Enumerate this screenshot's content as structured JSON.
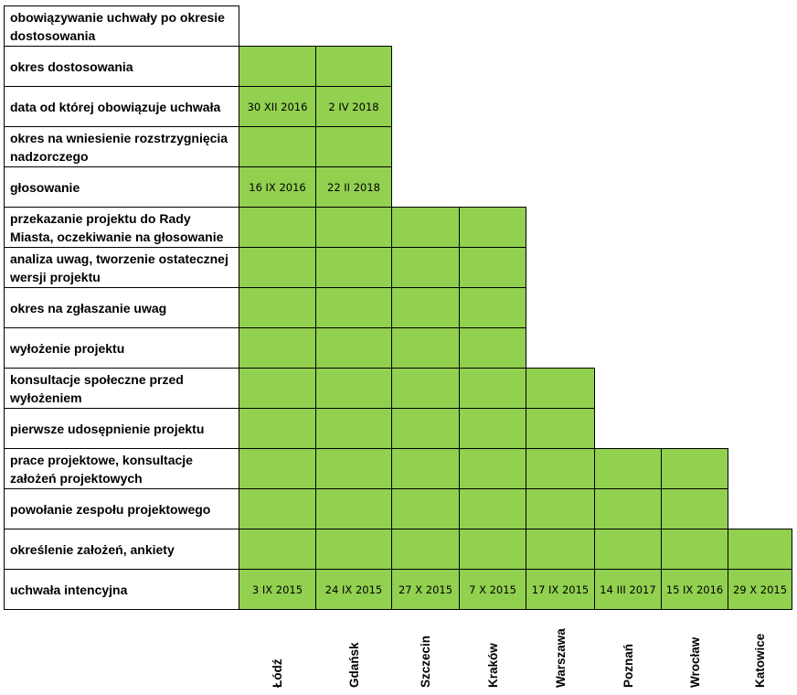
{
  "chart_data": {
    "type": "table",
    "colors": {
      "cell_fill": "#92d050",
      "border": "#000000",
      "background": "#ffffff"
    },
    "cities": [
      "Łódź",
      "Gdańsk",
      "Szczecin",
      "Kraków",
      "Warszawa",
      "Poznań",
      "Wrocław",
      "Katowice"
    ],
    "rows": [
      {
        "label": "obowiązywanie uchwały po okresie dostosowania",
        "filled_count": 0,
        "cells": []
      },
      {
        "label": "okres dostosowania",
        "filled_count": 2,
        "cells": [
          "",
          ""
        ]
      },
      {
        "label": "data od której obowiązuje uchwała",
        "filled_count": 2,
        "cells": [
          "30 XII 2016",
          "2 IV 2018"
        ]
      },
      {
        "label": "okres na wniesienie rozstrzygnięcia  nadzorczego",
        "filled_count": 2,
        "cells": [
          "",
          ""
        ]
      },
      {
        "label": "głosowanie",
        "filled_count": 2,
        "cells": [
          "16 IX 2016",
          "22 II 2018"
        ]
      },
      {
        "label": "przekazanie projektu do Rady Miasta, oczekiwanie na głosowanie",
        "filled_count": 4,
        "cells": [
          "",
          "",
          "",
          ""
        ]
      },
      {
        "label": "analiza uwag, tworzenie ostatecznej wersji projektu",
        "filled_count": 4,
        "cells": [
          "",
          "",
          "",
          ""
        ]
      },
      {
        "label": "okres na zgłaszanie uwag",
        "filled_count": 4,
        "cells": [
          "",
          "",
          "",
          ""
        ]
      },
      {
        "label": "wyłożenie projektu",
        "filled_count": 4,
        "cells": [
          "",
          "",
          "",
          ""
        ]
      },
      {
        "label": "konsultacje społeczne przed wyłożeniem",
        "filled_count": 5,
        "cells": [
          "",
          "",
          "",
          "",
          ""
        ]
      },
      {
        "label": "pierwsze udosępnienie projektu",
        "filled_count": 5,
        "cells": [
          "",
          "",
          "",
          "",
          ""
        ]
      },
      {
        "label": "prace projektowe, konsultacje założeń projektowych",
        "filled_count": 7,
        "cells": [
          "",
          "",
          "",
          "",
          "",
          "",
          ""
        ]
      },
      {
        "label": "powołanie zespołu projektowego",
        "filled_count": 7,
        "cells": [
          "",
          "",
          "",
          "",
          "",
          "",
          ""
        ]
      },
      {
        "label": "określenie założeń, ankiety",
        "filled_count": 8,
        "cells": [
          "",
          "",
          "",
          "",
          "",
          "",
          "",
          ""
        ]
      },
      {
        "label": "uchwała intencyjna",
        "filled_count": 8,
        "cells": [
          "3 IX 2015",
          "24 IX  2015",
          "27 X 2015",
          "7 X 2015",
          "17 IX 2015",
          "14 III 2017",
          "15 IX 2016",
          "29 X 2015"
        ]
      }
    ]
  }
}
